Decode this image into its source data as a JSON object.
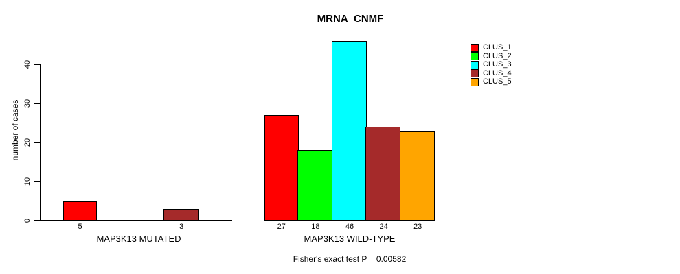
{
  "chart_data": {
    "type": "bar",
    "title": "MRNA_CNMF",
    "ylabel": "number of cases",
    "xlabel": "",
    "yticks": [
      0,
      10,
      20,
      30,
      40
    ],
    "ylim": [
      0,
      46
    ],
    "grid": false,
    "categories": [
      "CLUS_1",
      "CLUS_2",
      "CLUS_3",
      "CLUS_4",
      "CLUS_5"
    ],
    "groups": [
      {
        "label": "MAP3K13 MUTATED",
        "values": [
          5,
          0,
          0,
          3,
          0
        ],
        "bar_labels": [
          "5",
          "",
          "",
          "3",
          ""
        ]
      },
      {
        "label": "MAP3K13 WILD-TYPE",
        "values": [
          27,
          18,
          46,
          24,
          23
        ],
        "bar_labels": [
          "27",
          "18",
          "46",
          "24",
          "23"
        ]
      }
    ],
    "legend": {
      "position": "right",
      "entries": [
        {
          "label": "CLUS_1",
          "color": "#FF0000"
        },
        {
          "label": "CLUS_2",
          "color": "#00FF00"
        },
        {
          "label": "CLUS_3",
          "color": "#00FFFF"
        },
        {
          "label": "CLUS_4",
          "color": "#A52A2A"
        },
        {
          "label": "CLUS_5",
          "color": "#FFA500"
        }
      ]
    },
    "annotation": "Fisher's exact test P = 0.00582",
    "colors": {
      "axis": "#000000",
      "text": "#000000",
      "background": "#FFFFFF"
    }
  }
}
